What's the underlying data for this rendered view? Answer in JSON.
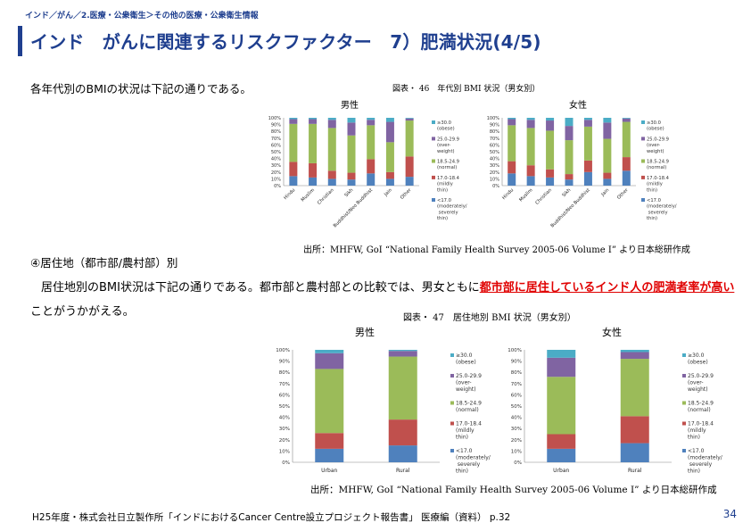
{
  "header": {
    "breadcrumb": "インド／がん／2.医療・公衆衛生＞その他の医療・公衆衛生情報",
    "title": "インド　がんに関連するリスクファクター　7）肥満状況(4/5)"
  },
  "intro": "各年代別のBMIの状況は下記の通りである。",
  "figure1": {
    "caption": "図表・ 46　年代別 BMI 状況（男女別）",
    "male_label": "男性",
    "female_label": "女性",
    "source": "出所：MHFW, GoI “National Family Health Survey 2005-06 Volume I” より日本総研作成"
  },
  "section": {
    "heading": "④居住地（都市部/農村部）別",
    "text_before": "居住地別のBMI状況は下記の通りである。都市部と農村部との比較では、男女ともに",
    "text_highlight": "都市部に居住しているインド人の肥満者率が高い",
    "text_after": "ことがうかがえる。"
  },
  "figure2": {
    "caption": "図表・ 47　居住地別 BMI 状況（男女別）",
    "male_label": "男性",
    "female_label": "女性",
    "source": "出所：MHFW, GoI “National Family Health Survey 2005-06 Volume I” より日本総研作成"
  },
  "footer": {
    "text": "H25年度・株式会社日立製作所「インドにおけるCancer Centre設立プロジェクト報告書」 医療編（資料） p.32",
    "page": "34"
  },
  "colors": {
    "brand": "#1f3f8f",
    "lt17": "#4f81bd",
    "mild": "#c0504d",
    "normal": "#9bbb59",
    "over": "#8064a2",
    "obese": "#4bacc6",
    "highlight": "#e00000"
  },
  "chart_data": [
    {
      "id": "religion-male",
      "type": "bar",
      "stacked": true,
      "title": "男性",
      "categories": [
        "Hindu",
        "Muslim",
        "Christian",
        "Sikh",
        "Buddhist/Neo Buddhist",
        "Jain",
        "Other"
      ],
      "ylim": [
        0,
        100
      ],
      "yticks": [
        "0%",
        "10%",
        "20%",
        "30%",
        "40%",
        "50%",
        "60%",
        "70%",
        "80%",
        "90%",
        "100%"
      ],
      "series": [
        {
          "name": "<17.0 (moderately/ severely thin)",
          "values": [
            14,
            12,
            10,
            9,
            18,
            10,
            13
          ]
        },
        {
          "name": "17.0-18.4 (mildly thin)",
          "values": [
            21,
            21,
            12,
            10,
            21,
            10,
            30
          ]
        },
        {
          "name": "18.5-24.9 (normal)",
          "values": [
            56,
            58,
            63,
            55,
            50,
            44,
            53
          ]
        },
        {
          "name": "25.0-29.9 (over-weight)",
          "values": [
            7,
            7,
            12,
            19,
            8,
            30,
            3
          ]
        },
        {
          "name": "≥30.0 (obese)",
          "values": [
            2,
            2,
            3,
            7,
            3,
            6,
            1
          ]
        }
      ]
    },
    {
      "id": "religion-female",
      "type": "bar",
      "stacked": true,
      "title": "女性",
      "categories": [
        "Hindu",
        "Muslim",
        "Christian",
        "Sikh",
        "Buddhist/Neo Buddhist",
        "Jain",
        "Other"
      ],
      "ylim": [
        0,
        100
      ],
      "yticks": [
        "0%",
        "10%",
        "20%",
        "30%",
        "40%",
        "50%",
        "60%",
        "70%",
        "80%",
        "90%",
        "100%"
      ],
      "series": [
        {
          "name": "<17.0 (moderately/ severely thin)",
          "values": [
            18,
            14,
            12,
            9,
            20,
            10,
            22
          ]
        },
        {
          "name": "17.0-18.4 (mildly thin)",
          "values": [
            18,
            16,
            12,
            8,
            17,
            9,
            20
          ]
        },
        {
          "name": "18.5-24.9 (normal)",
          "values": [
            53,
            55,
            57,
            50,
            50,
            50,
            52
          ]
        },
        {
          "name": "25.0-29.9 (over-weight)",
          "values": [
            9,
            12,
            15,
            21,
            10,
            24,
            5
          ]
        },
        {
          "name": "≥30.0 (obese)",
          "values": [
            2,
            3,
            4,
            12,
            3,
            7,
            1
          ]
        }
      ]
    },
    {
      "id": "residence-male",
      "type": "bar",
      "stacked": true,
      "title": "男性",
      "categories": [
        "Urban",
        "Rural"
      ],
      "ylim": [
        0,
        100
      ],
      "yticks": [
        "0%",
        "10%",
        "20%",
        "30%",
        "40%",
        "50%",
        "60%",
        "70%",
        "80%",
        "90%",
        "100%"
      ],
      "series": [
        {
          "name": "<17.0 (moderately/ severely thin)",
          "values": [
            12,
            15
          ]
        },
        {
          "name": "17.0-18.4 (mildly thin)",
          "values": [
            14,
            23
          ]
        },
        {
          "name": "18.5-24.9 (normal)",
          "values": [
            57,
            56
          ]
        },
        {
          "name": "25.0-29.9 (over-weight)",
          "values": [
            14,
            5
          ]
        },
        {
          "name": "≥30.0 (obese)",
          "values": [
            3,
            1
          ]
        }
      ]
    },
    {
      "id": "residence-female",
      "type": "bar",
      "stacked": true,
      "title": "女性",
      "categories": [
        "Urban",
        "Rural"
      ],
      "ylim": [
        0,
        100
      ],
      "yticks": [
        "0%",
        "10%",
        "20%",
        "30%",
        "40%",
        "50%",
        "60%",
        "70%",
        "80%",
        "90%",
        "100%"
      ],
      "series": [
        {
          "name": "<17.0 (moderately/ severely thin)",
          "values": [
            12,
            17
          ]
        },
        {
          "name": "17.0-18.4 (mildly thin)",
          "values": [
            13,
            24
          ]
        },
        {
          "name": "18.5-24.9 (normal)",
          "values": [
            51,
            51
          ]
        },
        {
          "name": "25.0-29.9 (over-weight)",
          "values": [
            17,
            6
          ]
        },
        {
          "name": "≥30.0 (obese)",
          "values": [
            7,
            2
          ]
        }
      ]
    }
  ]
}
